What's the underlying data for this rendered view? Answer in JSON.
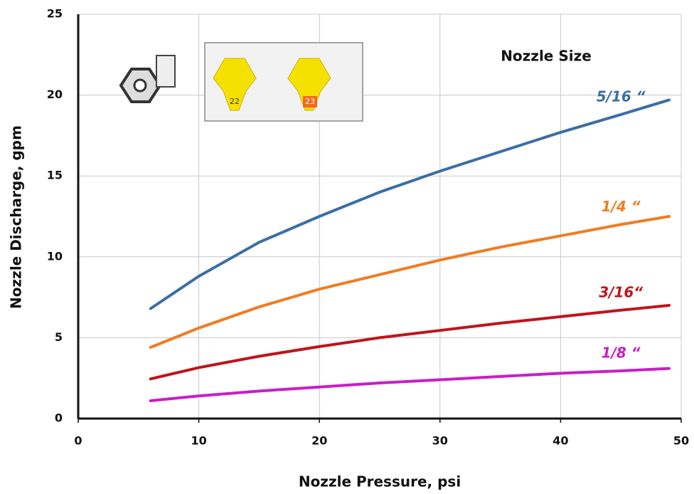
{
  "chart_data": {
    "type": "line",
    "x_label": "Nozzle Pressure, psi",
    "y_label": "Nozzle Discharge, gpm",
    "annotation": "Nozzle Size",
    "nozzle_labels": [
      "22",
      "23"
    ],
    "x": [
      6,
      10,
      15,
      20,
      25,
      30,
      35,
      40,
      45,
      49
    ],
    "series": [
      {
        "name": "5/16 “",
        "color": "#3b6ea5",
        "values": [
          6.8,
          8.8,
          10.9,
          12.5,
          14.0,
          15.3,
          16.5,
          17.7,
          18.8,
          19.7
        ]
      },
      {
        "name": "1/4 “",
        "color": "#f07c22",
        "values": [
          4.4,
          5.6,
          6.9,
          8.0,
          8.9,
          9.8,
          10.6,
          11.3,
          12.0,
          12.5
        ]
      },
      {
        "name": "3/16“",
        "color": "#c0141a",
        "values": [
          2.45,
          3.15,
          3.85,
          4.45,
          5.0,
          5.45,
          5.9,
          6.3,
          6.7,
          7.0
        ]
      },
      {
        "name": "1/8 “",
        "color": "#c81ec8",
        "values": [
          1.1,
          1.4,
          1.7,
          1.95,
          2.2,
          2.4,
          2.6,
          2.8,
          2.95,
          3.1
        ]
      }
    ],
    "xlim": [
      0,
      50
    ],
    "xticks": [
      0,
      10,
      20,
      30,
      40,
      50
    ],
    "ylim": [
      0,
      25
    ],
    "yticks": [
      0,
      5,
      10,
      15,
      20,
      25
    ],
    "grid": true
  }
}
